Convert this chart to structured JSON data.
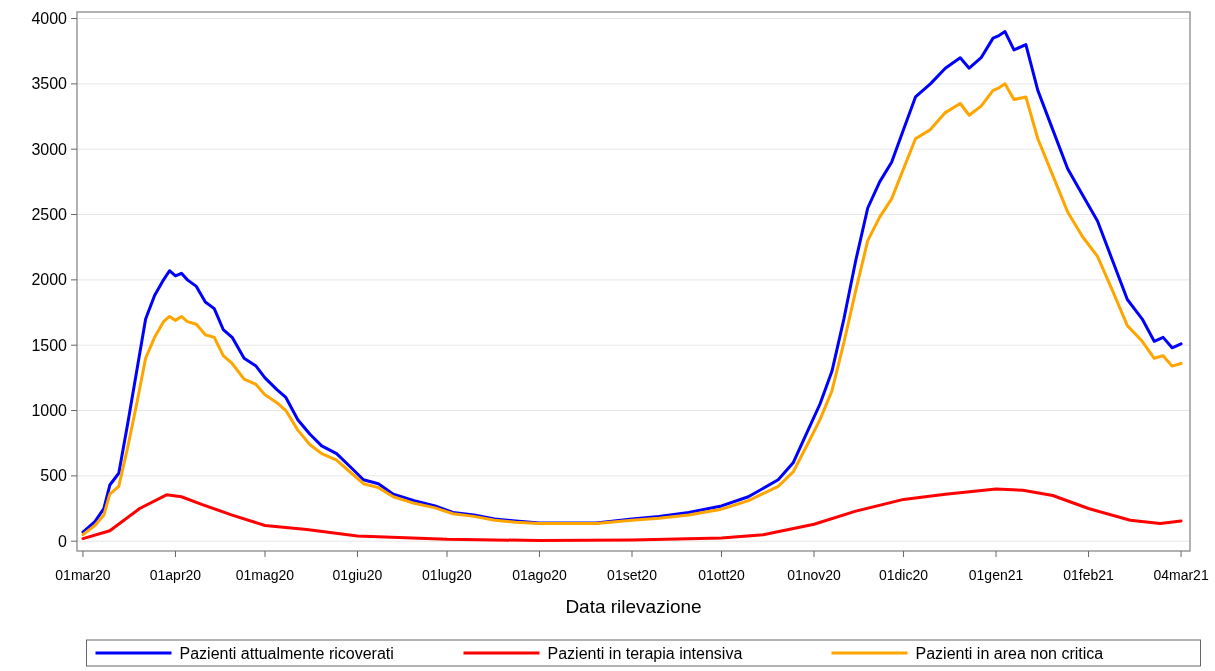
{
  "chart_data": {
    "type": "line",
    "xlabel": "Data rilevazione",
    "xlim": [
      "2020-02-28",
      "2021-03-07"
    ],
    "ylim": [
      -75,
      4050
    ],
    "xticks": [
      {
        "value": "2020-03-01",
        "label": "01mar20"
      },
      {
        "value": "2020-04-01",
        "label": "01apr20"
      },
      {
        "value": "2020-05-01",
        "label": "01mag20"
      },
      {
        "value": "2020-06-01",
        "label": "01giu20"
      },
      {
        "value": "2020-07-01",
        "label": "01lug20"
      },
      {
        "value": "2020-08-01",
        "label": "01ago20"
      },
      {
        "value": "2020-09-01",
        "label": "01set20"
      },
      {
        "value": "2020-10-01",
        "label": "01ott20"
      },
      {
        "value": "2020-11-01",
        "label": "01nov20"
      },
      {
        "value": "2020-12-01",
        "label": "01dic20"
      },
      {
        "value": "2021-01-01",
        "label": "01gen21"
      },
      {
        "value": "2021-02-01",
        "label": "01feb21"
      },
      {
        "value": "2021-03-04",
        "label": "04mar21"
      }
    ],
    "yticks": [
      0,
      500,
      1000,
      1500,
      2000,
      2500,
      3000,
      3500,
      4000
    ],
    "grid": "y",
    "legend": "bottom",
    "line_style": "solid",
    "marker": "none",
    "x": [
      "2020-03-01",
      "2020-03-05",
      "2020-03-08",
      "2020-03-10",
      "2020-03-13",
      "2020-03-16",
      "2020-03-19",
      "2020-03-22",
      "2020-03-25",
      "2020-03-28",
      "2020-03-30",
      "2020-04-01",
      "2020-04-03",
      "2020-04-05",
      "2020-04-08",
      "2020-04-11",
      "2020-04-14",
      "2020-04-17",
      "2020-04-20",
      "2020-04-24",
      "2020-04-28",
      "2020-05-01",
      "2020-05-05",
      "2020-05-08",
      "2020-05-12",
      "2020-05-16",
      "2020-05-20",
      "2020-05-25",
      "2020-05-30",
      "2020-06-03",
      "2020-06-08",
      "2020-06-13",
      "2020-06-20",
      "2020-06-27",
      "2020-07-03",
      "2020-07-10",
      "2020-07-17",
      "2020-07-24",
      "2020-08-01",
      "2020-08-10",
      "2020-08-20",
      "2020-09-01",
      "2020-09-10",
      "2020-09-20",
      "2020-10-01",
      "2020-10-10",
      "2020-10-20",
      "2020-10-25",
      "2020-10-30",
      "2020-11-03",
      "2020-11-07",
      "2020-11-11",
      "2020-11-15",
      "2020-11-19",
      "2020-11-23",
      "2020-11-27",
      "2020-12-01",
      "2020-12-05",
      "2020-12-10",
      "2020-12-15",
      "2020-12-20",
      "2020-12-23",
      "2020-12-27",
      "2020-12-31",
      "2021-01-02",
      "2021-01-04",
      "2021-01-07",
      "2021-01-11",
      "2021-01-15",
      "2021-01-20",
      "2021-01-25",
      "2021-01-30",
      "2021-02-04",
      "2021-02-09",
      "2021-02-14",
      "2021-02-19",
      "2021-02-23",
      "2021-02-26",
      "2021-03-01",
      "2021-03-04"
    ],
    "series": [
      {
        "name": "Pazienti attualmente ricoverati",
        "color": "#0000ff",
        "values": [
          70,
          150,
          250,
          430,
          520,
          900,
          1300,
          1700,
          1880,
          2000,
          2070,
          2030,
          2050,
          2000,
          1950,
          1830,
          1780,
          1620,
          1560,
          1400,
          1340,
          1250,
          1160,
          1100,
          930,
          820,
          730,
          670,
          560,
          470,
          440,
          360,
          310,
          270,
          220,
          200,
          170,
          155,
          140,
          140,
          140,
          170,
          190,
          220,
          270,
          340,
          470,
          600,
          850,
          1050,
          1300,
          1700,
          2150,
          2550,
          2750,
          2900,
          3150,
          3400,
          3500,
          3620,
          3700,
          3620,
          3700,
          3850,
          3870,
          3900,
          3760,
          3800,
          3450,
          3150,
          2850,
          2650,
          2450,
          2150,
          1850,
          1700,
          1530,
          1560,
          1480,
          1510
        ]
      },
      {
        "name": "Pazienti in terapia intensiva",
        "color": "#ff0000",
        "x": [
          "2020-03-01",
          "2020-03-10",
          "2020-03-20",
          "2020-03-29",
          "2020-04-03",
          "2020-04-10",
          "2020-04-20",
          "2020-05-01",
          "2020-05-15",
          "2020-06-01",
          "2020-07-01",
          "2020-08-01",
          "2020-09-01",
          "2020-10-01",
          "2020-10-15",
          "2020-11-01",
          "2020-11-15",
          "2020-12-01",
          "2020-12-15",
          "2021-01-01",
          "2021-01-10",
          "2021-01-20",
          "2021-02-01",
          "2021-02-15",
          "2021-02-25",
          "2021-03-04"
        ],
        "values": [
          20,
          80,
          250,
          355,
          340,
          280,
          200,
          120,
          90,
          40,
          15,
          5,
          10,
          25,
          50,
          130,
          230,
          320,
          360,
          400,
          390,
          350,
          250,
          160,
          135,
          155
        ]
      },
      {
        "name": "Pazienti in area non critica",
        "color": "#ffa500",
        "values": [
          50,
          120,
          200,
          360,
          420,
          720,
          1050,
          1400,
          1560,
          1680,
          1720,
          1690,
          1720,
          1680,
          1660,
          1580,
          1560,
          1420,
          1360,
          1240,
          1200,
          1120,
          1060,
          1000,
          850,
          740,
          670,
          620,
          520,
          440,
          410,
          340,
          290,
          255,
          210,
          190,
          160,
          145,
          135,
          135,
          135,
          160,
          175,
          200,
          245,
          310,
          420,
          530,
          750,
          930,
          1150,
          1520,
          1920,
          2300,
          2480,
          2620,
          2850,
          3080,
          3150,
          3280,
          3350,
          3260,
          3330,
          3450,
          3470,
          3500,
          3380,
          3400,
          3080,
          2800,
          2520,
          2330,
          2180,
          1920,
          1650,
          1530,
          1400,
          1420,
          1340,
          1360
        ]
      }
    ]
  }
}
